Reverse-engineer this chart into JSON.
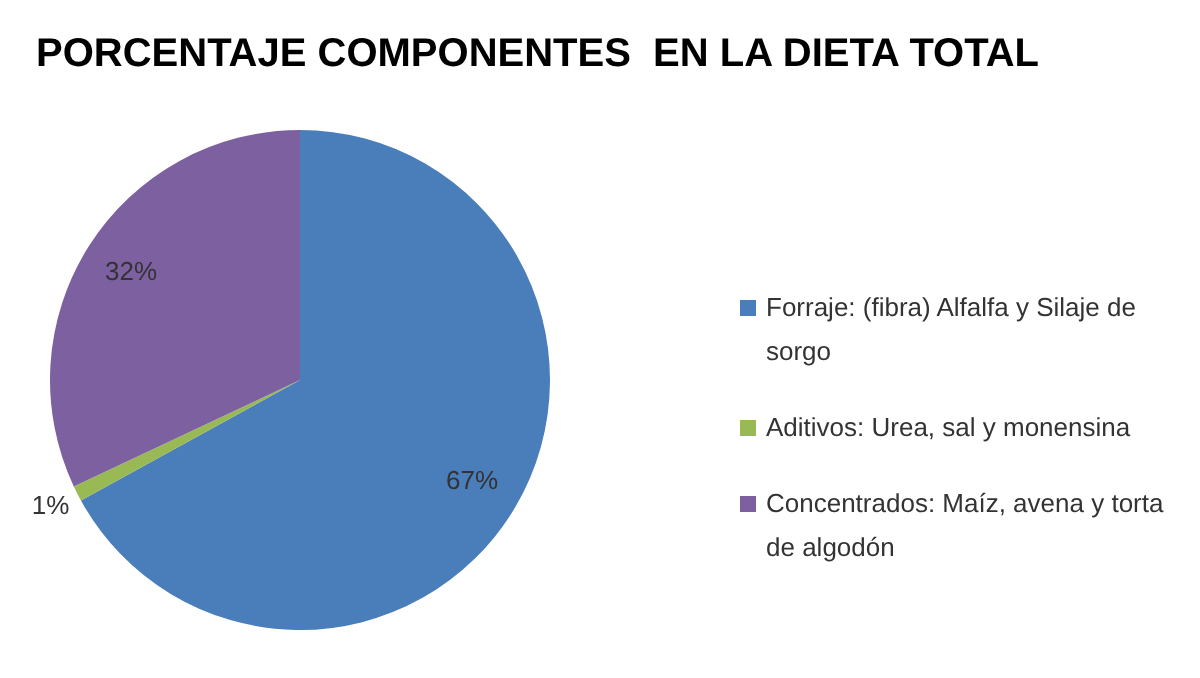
{
  "chart_data": {
    "type": "pie",
    "title": "PORCENTAJE COMPONENTES  EN LA DIETA TOTAL",
    "categories": [
      "Forraje: (fibra) Alfalfa y Silaje de sorgo",
      "Aditivos: Urea, sal y monensina",
      "Concentrados: Maíz, avena y torta de algodón"
    ],
    "values": [
      67,
      1,
      32
    ],
    "value_labels": [
      "67%",
      "1%",
      "32%"
    ],
    "colors": [
      "#4a7ebb",
      "#98b954",
      "#7d60a0"
    ],
    "legend": "right"
  }
}
